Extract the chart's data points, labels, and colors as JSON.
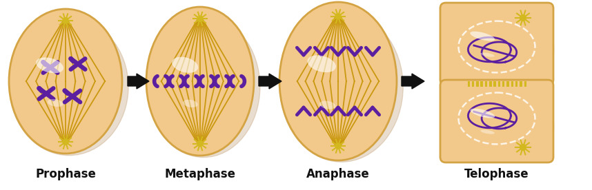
{
  "phases": [
    "Prophase",
    "Metaphase",
    "Anaphase",
    "Telophase"
  ],
  "phase_label_fontsize": 12,
  "bg_color": "#ffffff",
  "cell_fill": "#f2c98a",
  "cell_edge": "#d4a444",
  "spindle_color": "#c8960a",
  "chromo_color": "#5b1fa0",
  "centriole_color": "#d4b820",
  "arrow_color": "#111111",
  "fig_width": 8.58,
  "fig_height": 2.76
}
